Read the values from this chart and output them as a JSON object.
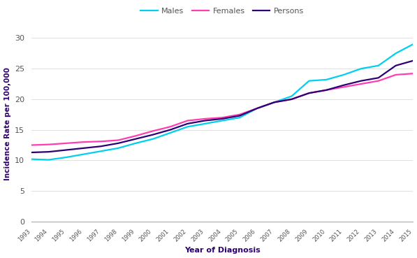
{
  "years": [
    1993,
    1994,
    1995,
    1996,
    1997,
    1998,
    1999,
    2000,
    2001,
    2002,
    2003,
    2004,
    2005,
    2006,
    2007,
    2008,
    2009,
    2010,
    2011,
    2012,
    2013,
    2014,
    2015
  ],
  "males": [
    10.2,
    10.1,
    10.5,
    11.0,
    11.5,
    12.0,
    12.8,
    13.5,
    14.5,
    15.5,
    16.0,
    16.5,
    17.0,
    18.5,
    19.5,
    20.5,
    23.0,
    23.2,
    24.0,
    25.0,
    25.5,
    27.5,
    29.0
  ],
  "females": [
    12.5,
    12.6,
    12.8,
    13.0,
    13.1,
    13.3,
    14.0,
    14.8,
    15.5,
    16.5,
    16.8,
    17.0,
    17.5,
    18.5,
    19.5,
    20.0,
    21.0,
    21.5,
    22.0,
    22.5,
    23.0,
    24.0,
    24.2
  ],
  "persons": [
    11.3,
    11.4,
    11.7,
    12.0,
    12.3,
    12.8,
    13.5,
    14.2,
    15.0,
    16.0,
    16.5,
    16.8,
    17.3,
    18.5,
    19.5,
    20.0,
    21.0,
    21.5,
    22.3,
    23.0,
    23.5,
    25.5,
    26.3
  ],
  "males_color": "#00CFEF",
  "females_color": "#FF3DB0",
  "persons_color": "#2E0073",
  "ylabel": "Incidence Rate per 100,000",
  "xlabel": "Year of Diagnosis",
  "ylim": [
    0,
    32
  ],
  "yticks": [
    0,
    5,
    10,
    15,
    20,
    25,
    30
  ],
  "legend_labels": [
    "Males",
    "Females",
    "Persons"
  ],
  "line_width": 1.6
}
